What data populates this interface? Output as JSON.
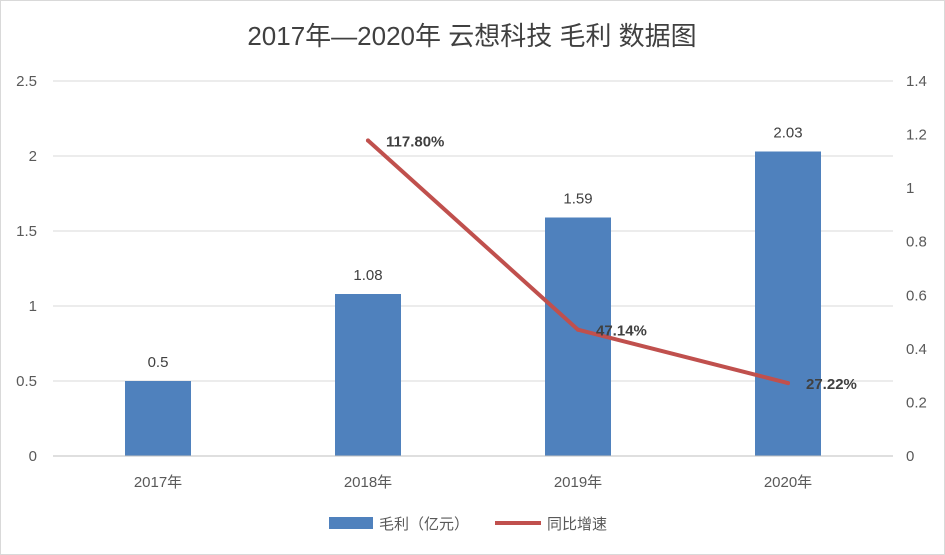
{
  "chart_data": {
    "type": "bar",
    "title": "2017年—2020年 云想科技 毛利 数据图",
    "categories": [
      "2017年",
      "2018年",
      "2019年",
      "2020年"
    ],
    "series": [
      {
        "name": "毛利（亿元）",
        "kind": "bar",
        "axis": "left",
        "color": "#4F81BD",
        "values": [
          0.5,
          1.08,
          1.59,
          2.03
        ],
        "labels": [
          "0.5",
          "1.08",
          "1.59",
          "2.03"
        ]
      },
      {
        "name": "同比增速",
        "kind": "line",
        "axis": "right",
        "color": "#C0504D",
        "values": [
          null,
          1.178,
          0.4714,
          0.2722
        ],
        "labels": [
          "",
          "117.80%",
          "47.14%",
          "27.22%"
        ]
      }
    ],
    "y_left": {
      "min": 0,
      "max": 2.5,
      "ticks": [
        "0",
        "0.5",
        "1",
        "1.5",
        "2",
        "2.5"
      ]
    },
    "y_right": {
      "min": 0,
      "max": 1.4,
      "ticks": [
        "0",
        "0.2",
        "0.4",
        "0.6",
        "0.8",
        "1",
        "1.2",
        "1.4"
      ]
    },
    "grid": true,
    "legend": "bottom"
  }
}
